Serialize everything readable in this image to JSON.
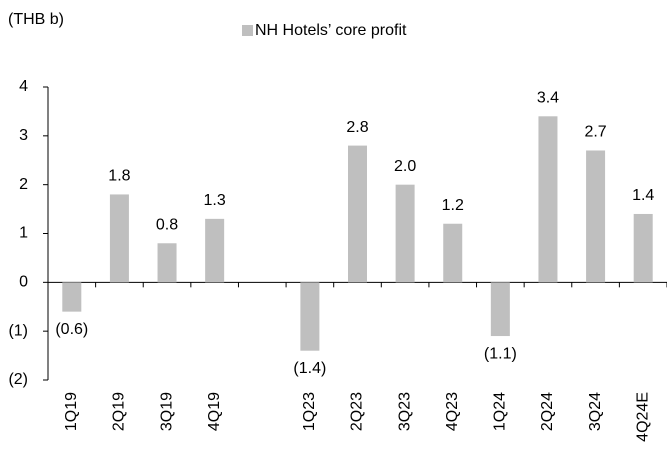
{
  "chart_data": {
    "type": "bar",
    "y_unit_label": "(THB b)",
    "categories": [
      "1Q19",
      "2Q19",
      "3Q19",
      "4Q19",
      null,
      "1Q23",
      "2Q23",
      "3Q23",
      "4Q23",
      "1Q24",
      "2Q24",
      "3Q24",
      "4Q24E"
    ],
    "series": [
      {
        "name": "NH Hotels’ core profit",
        "color": "#bfbfbf",
        "values": [
          -0.6,
          1.8,
          0.8,
          1.3,
          null,
          -1.4,
          2.8,
          2.0,
          1.2,
          -1.1,
          3.4,
          2.7,
          1.4
        ],
        "value_labels": [
          "(0.6)",
          "1.8",
          "0.8",
          "1.3",
          null,
          "(1.4)",
          "2.8",
          "2.0",
          "1.2",
          "(1.1)",
          "3.4",
          "2.7",
          "1.4"
        ]
      }
    ],
    "ylim": [
      -2,
      4
    ],
    "yticks": [
      {
        "value": -2,
        "label": "(2)"
      },
      {
        "value": -1,
        "label": "(1)"
      },
      0,
      1,
      2,
      3,
      4
    ],
    "grid": false
  }
}
